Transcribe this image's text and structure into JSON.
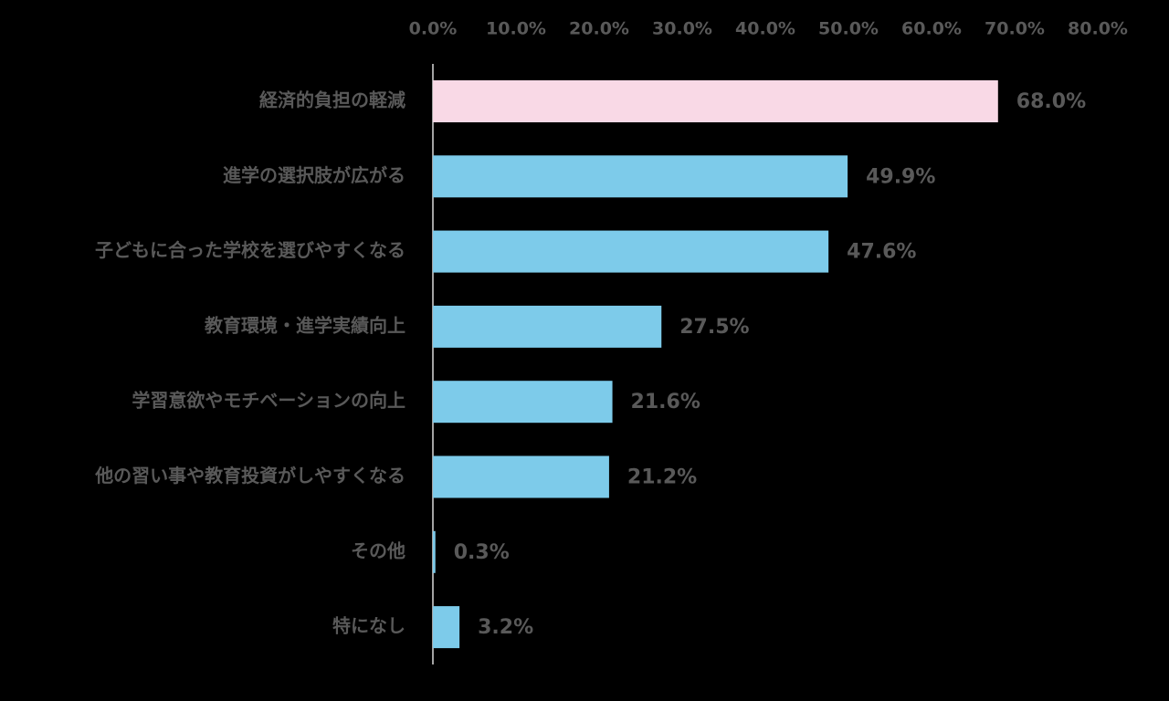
{
  "chart_data": {
    "type": "bar",
    "orientation": "horizontal",
    "title": "",
    "xlabel": "",
    "ylabel": "",
    "xlim": [
      0,
      80
    ],
    "x_ticks": [
      0,
      10,
      20,
      30,
      40,
      50,
      60,
      70,
      80
    ],
    "x_tick_labels": [
      "0.0%",
      "10.0%",
      "20.0%",
      "30.0%",
      "40.0%",
      "50.0%",
      "60.0%",
      "70.0%",
      "80.0%"
    ],
    "x_axis_position": "top",
    "grid": false,
    "legend": "none",
    "categories": [
      "経済的負担の軽減",
      "進学の選択肢が広がる",
      "子どもに合った学校を選びやすくなる",
      "教育環境・進学実績向上",
      "学習意欲やモチベーションの向上",
      "他の習い事や教育投資がしやすくなる",
      "その他",
      "特になし"
    ],
    "values": [
      68.0,
      49.9,
      47.6,
      27.5,
      21.6,
      21.2,
      0.3,
      3.2
    ],
    "value_labels": [
      "68.0%",
      "49.9%",
      "47.6%",
      "27.5%",
      "21.6%",
      "21.2%",
      "0.3%",
      "3.2%"
    ],
    "bar_colors": [
      "#F9D9E6",
      "#7DCBEA",
      "#7DCBEA",
      "#7DCBEA",
      "#7DCBEA",
      "#7DCBEA",
      "#7DCBEA",
      "#7DCBEA"
    ],
    "highlight_color": "#F9D9E6",
    "bar_color": "#7DCBEA",
    "text_color": "#595959",
    "axis_color": "#D9D9D9",
    "background": "#000000"
  }
}
